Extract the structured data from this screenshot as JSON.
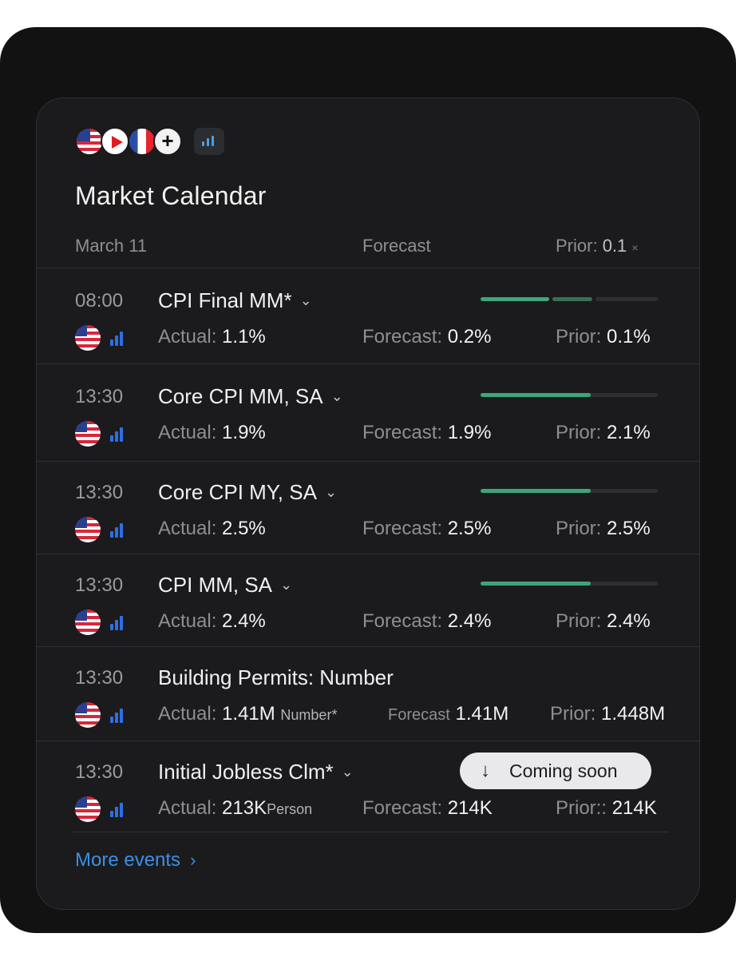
{
  "header": {
    "plus_label": "+",
    "title": "Market Calendar"
  },
  "columns": {
    "date": "March 11",
    "forecast": "Forecast",
    "prior_label": "Prior:",
    "prior_value": "0.1",
    "prior_close": "×"
  },
  "rows": [
    {
      "time": "08:00",
      "name": "CPI Final MM*",
      "actual_label": "Actual:",
      "actual": "1.1%",
      "forecast_label": "Forecast:",
      "forecast": "0.2%",
      "prior_label": "Prior:",
      "prior": "0.1%"
    },
    {
      "time": "13:30",
      "name": "Core CPI MM, SA",
      "actual_label": "Actual:",
      "actual": "1.9%",
      "forecast_label": "Forecast:",
      "forecast": "1.9%",
      "prior_label": "Prior:",
      "prior": "2.1%"
    },
    {
      "time": "13:30",
      "name": "Core CPI MY, SA",
      "actual_label": "Actual:",
      "actual": "2.5%",
      "forecast_label": "Forecast:",
      "forecast": "2.5%",
      "prior_label": "Prior:",
      "prior": "2.5%"
    },
    {
      "time": "13:30",
      "name": "CPI MM, SA",
      "actual_label": "Actual:",
      "actual": "2.4%",
      "forecast_label": "Forecast:",
      "forecast": "2.4%",
      "prior_label": "Prior:",
      "prior": "2.4%"
    },
    {
      "time": "13:30",
      "name": "Building Permits: Number",
      "actual_label": "Actual:",
      "actual": "1.41M",
      "actual_unit": "Number*",
      "forecast_label": "Forecast",
      "forecast": "1.41M",
      "prior_label": "Prior:",
      "prior": "1.448M"
    },
    {
      "time": "13:30",
      "name": "Initial Jobless Clm*",
      "actual_label": "Actual:",
      "actual": "213K",
      "actual_unit": "Person",
      "forecast_label": "Forecast:",
      "forecast": "214K",
      "prior_label": "Prior::",
      "prior": "214K",
      "badge": "Coming soon"
    }
  ],
  "importance": [
    {
      "filled": 1.0,
      "segments": 3,
      "level": 2
    },
    {
      "level": 0.62
    },
    {
      "level": 0.62
    },
    {
      "level": 0.62
    }
  ],
  "footer": {
    "more_label": "More events"
  },
  "colors": {
    "accent_blue": "#3b8fe6",
    "progress_green": "#3fa57a",
    "progress_track": "#2e2f33"
  }
}
